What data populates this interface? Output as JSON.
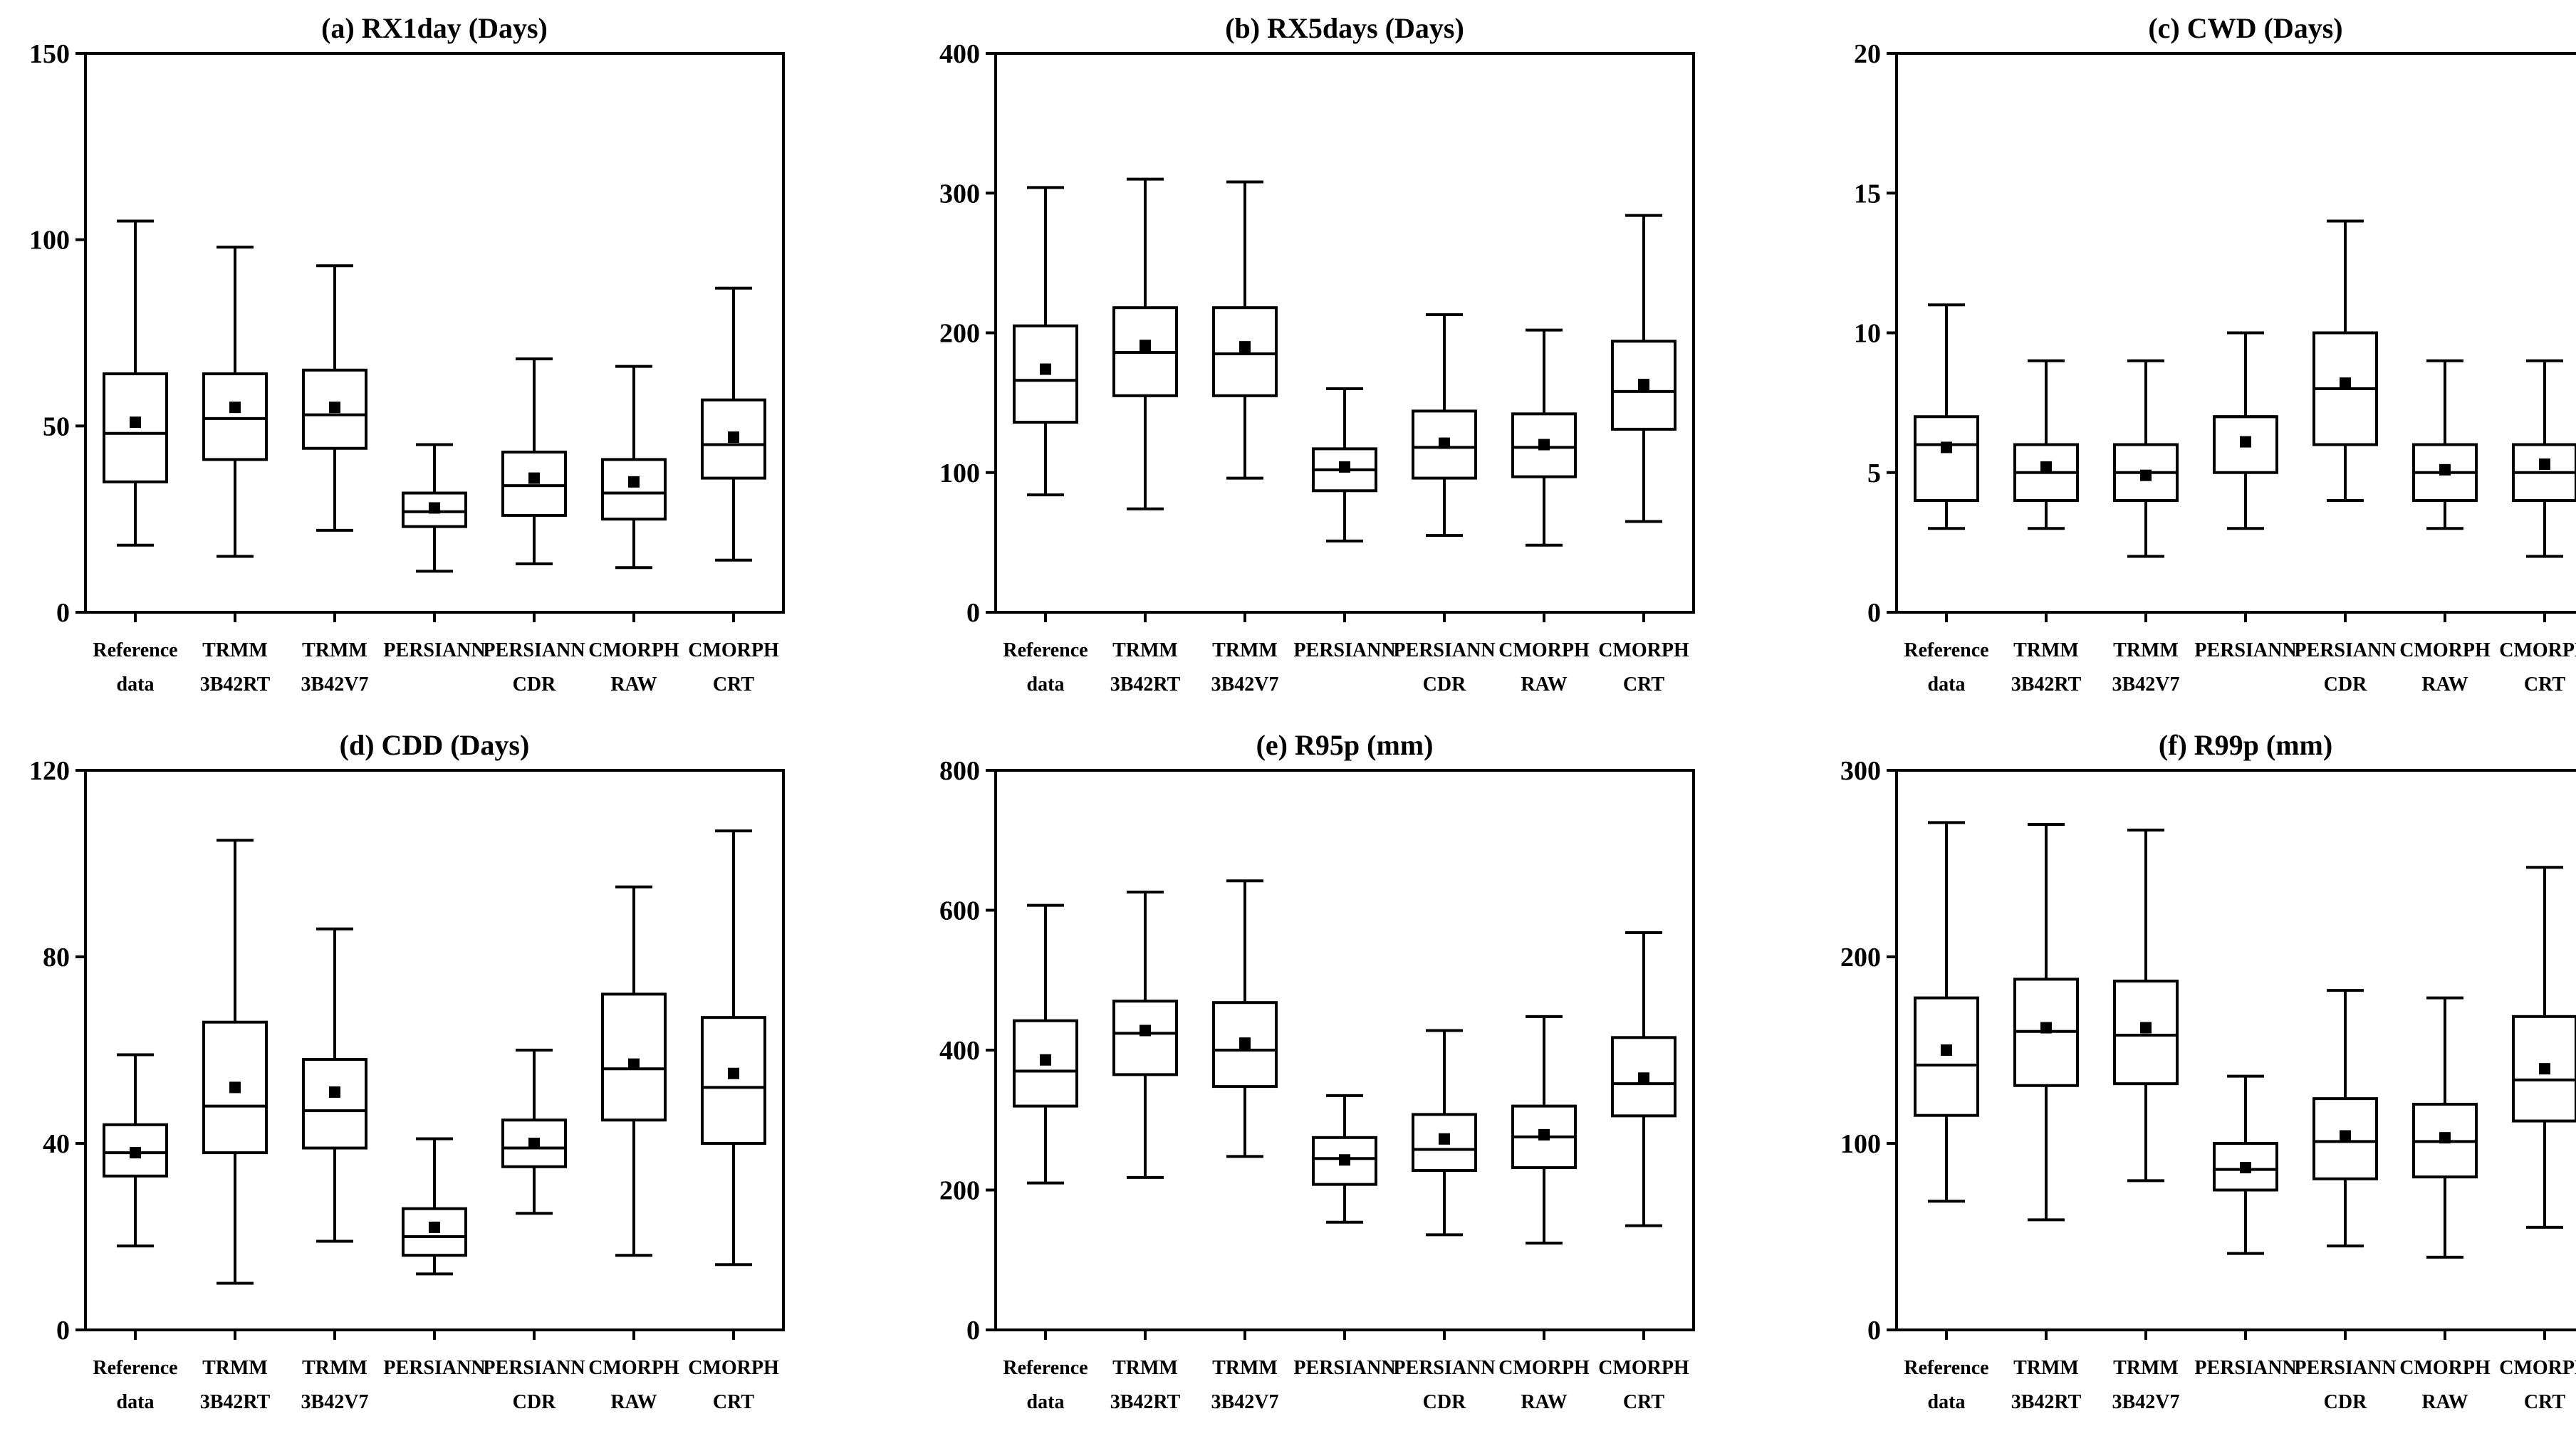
{
  "chart_data": [
    {
      "type": "boxplot",
      "title": "(a) RX1day (Days)",
      "ylim": [
        0,
        150
      ],
      "yticks": [
        0,
        50,
        100,
        150
      ],
      "categories": [
        [
          "Reference",
          "data"
        ],
        [
          "TRMM",
          "3B42RT"
        ],
        [
          "TRMM",
          "3B42V7"
        ],
        [
          "PERSIANN",
          ""
        ],
        [
          "PERSIANN",
          "CDR"
        ],
        [
          "CMORPH",
          "RAW"
        ],
        [
          "CMORPH",
          "CRT"
        ]
      ],
      "boxes": [
        {
          "min": 18,
          "q1": 35,
          "median": 48,
          "q3": 64,
          "max": 105,
          "mean": 51
        },
        {
          "min": 15,
          "q1": 41,
          "median": 52,
          "q3": 64,
          "max": 98,
          "mean": 55
        },
        {
          "min": 22,
          "q1": 44,
          "median": 53,
          "q3": 65,
          "max": 93,
          "mean": 55
        },
        {
          "min": 11,
          "q1": 23,
          "median": 27,
          "q3": 32,
          "max": 45,
          "mean": 28
        },
        {
          "min": 13,
          "q1": 26,
          "median": 34,
          "q3": 43,
          "max": 68,
          "mean": 36
        },
        {
          "min": 12,
          "q1": 25,
          "median": 32,
          "q3": 41,
          "max": 66,
          "mean": 35
        },
        {
          "min": 14,
          "q1": 36,
          "median": 45,
          "q3": 57,
          "max": 87,
          "mean": 47
        }
      ]
    },
    {
      "type": "boxplot",
      "title": "(b) RX5days (Days)",
      "ylim": [
        0,
        400
      ],
      "yticks": [
        0,
        100,
        200,
        300,
        400
      ],
      "categories": [
        [
          "Reference",
          "data"
        ],
        [
          "TRMM",
          "3B42RT"
        ],
        [
          "TRMM",
          "3B42V7"
        ],
        [
          "PERSIANN",
          ""
        ],
        [
          "PERSIANN",
          "CDR"
        ],
        [
          "CMORPH",
          "RAW"
        ],
        [
          "CMORPH",
          "CRT"
        ]
      ],
      "boxes": [
        {
          "min": 84,
          "q1": 136,
          "median": 166,
          "q3": 205,
          "max": 304,
          "mean": 174
        },
        {
          "min": 74,
          "q1": 155,
          "median": 186,
          "q3": 218,
          "max": 310,
          "mean": 191
        },
        {
          "min": 96,
          "q1": 155,
          "median": 185,
          "q3": 218,
          "max": 308,
          "mean": 190
        },
        {
          "min": 51,
          "q1": 87,
          "median": 102,
          "q3": 117,
          "max": 160,
          "mean": 104
        },
        {
          "min": 55,
          "q1": 96,
          "median": 118,
          "q3": 144,
          "max": 213,
          "mean": 121
        },
        {
          "min": 48,
          "q1": 97,
          "median": 118,
          "q3": 142,
          "max": 202,
          "mean": 120
        },
        {
          "min": 65,
          "q1": 131,
          "median": 158,
          "q3": 194,
          "max": 284,
          "mean": 163
        }
      ]
    },
    {
      "type": "boxplot",
      "title": "(c) CWD (Days)",
      "ylim": [
        0,
        20
      ],
      "yticks": [
        0,
        5,
        10,
        15,
        20
      ],
      "categories": [
        [
          "Reference",
          "data"
        ],
        [
          "TRMM",
          "3B42RT"
        ],
        [
          "TRMM",
          "3B42V7"
        ],
        [
          "PERSIANN",
          ""
        ],
        [
          "PERSIANN",
          "CDR"
        ],
        [
          "CMORPH",
          "RAW"
        ],
        [
          "CMORPH",
          "CRT"
        ]
      ],
      "boxes": [
        {
          "min": 3,
          "q1": 4,
          "median": 6,
          "q3": 7,
          "max": 11,
          "mean": 5.9
        },
        {
          "min": 3,
          "q1": 4,
          "median": 5,
          "q3": 6,
          "max": 9,
          "mean": 5.2
        },
        {
          "min": 2,
          "q1": 4,
          "median": 5,
          "q3": 6,
          "max": 9,
          "mean": 4.9
        },
        {
          "min": 3,
          "q1": 5,
          "median": 7,
          "q3": 7,
          "max": 10,
          "mean": 6.1
        },
        {
          "min": 4,
          "q1": 6,
          "median": 8,
          "q3": 10,
          "max": 14,
          "mean": 8.2
        },
        {
          "min": 3,
          "q1": 4,
          "median": 5,
          "q3": 6,
          "max": 9,
          "mean": 5.1
        },
        {
          "min": 2,
          "q1": 4,
          "median": 5,
          "q3": 6,
          "max": 9,
          "mean": 5.3
        }
      ]
    },
    {
      "type": "boxplot",
      "title": "(d) CDD (Days)",
      "ylim": [
        0,
        120
      ],
      "yticks": [
        0,
        40,
        80,
        120
      ],
      "categories": [
        [
          "Reference",
          "data"
        ],
        [
          "TRMM",
          "3B42RT"
        ],
        [
          "TRMM",
          "3B42V7"
        ],
        [
          "PERSIANN",
          ""
        ],
        [
          "PERSIANN",
          "CDR"
        ],
        [
          "CMORPH",
          "RAW"
        ],
        [
          "CMORPH",
          "CRT"
        ]
      ],
      "boxes": [
        {
          "min": 18,
          "q1": 33,
          "median": 38,
          "q3": 44,
          "max": 59,
          "mean": 38
        },
        {
          "min": 10,
          "q1": 38,
          "median": 48,
          "q3": 66,
          "max": 105,
          "mean": 52
        },
        {
          "min": 19,
          "q1": 39,
          "median": 47,
          "q3": 58,
          "max": 86,
          "mean": 51
        },
        {
          "min": 12,
          "q1": 16,
          "median": 20,
          "q3": 26,
          "max": 41,
          "mean": 22
        },
        {
          "min": 25,
          "q1": 35,
          "median": 39,
          "q3": 45,
          "max": 60,
          "mean": 40
        },
        {
          "min": 16,
          "q1": 45,
          "median": 56,
          "q3": 72,
          "max": 95,
          "mean": 57
        },
        {
          "min": 14,
          "q1": 40,
          "median": 52,
          "q3": 67,
          "max": 107,
          "mean": 55
        }
      ]
    },
    {
      "type": "boxplot",
      "title": "(e) R95p (mm)",
      "ylim": [
        0,
        800
      ],
      "yticks": [
        0,
        200,
        400,
        600,
        800
      ],
      "categories": [
        [
          "Reference",
          "data"
        ],
        [
          "TRMM",
          "3B42RT"
        ],
        [
          "TRMM",
          "3B42V7"
        ],
        [
          "PERSIANN",
          ""
        ],
        [
          "PERSIANN",
          "CDR"
        ],
        [
          "CMORPH",
          "RAW"
        ],
        [
          "CMORPH",
          "CRT"
        ]
      ],
      "boxes": [
        {
          "min": 210,
          "q1": 320,
          "median": 370,
          "q3": 442,
          "max": 607,
          "mean": 386
        },
        {
          "min": 218,
          "q1": 365,
          "median": 424,
          "q3": 470,
          "max": 626,
          "mean": 428
        },
        {
          "min": 248,
          "q1": 348,
          "median": 400,
          "q3": 468,
          "max": 642,
          "mean": 410
        },
        {
          "min": 154,
          "q1": 208,
          "median": 245,
          "q3": 275,
          "max": 335,
          "mean": 243
        },
        {
          "min": 136,
          "q1": 228,
          "median": 258,
          "q3": 308,
          "max": 428,
          "mean": 273
        },
        {
          "min": 124,
          "q1": 232,
          "median": 276,
          "q3": 320,
          "max": 448,
          "mean": 279
        },
        {
          "min": 149,
          "q1": 306,
          "median": 352,
          "q3": 418,
          "max": 568,
          "mean": 360
        }
      ]
    },
    {
      "type": "boxplot",
      "title": "(f) R99p (mm)",
      "ylim": [
        0,
        300
      ],
      "yticks": [
        0,
        100,
        200,
        300
      ],
      "categories": [
        [
          "Reference",
          "data"
        ],
        [
          "TRMM",
          "3B42RT"
        ],
        [
          "TRMM",
          "3B42V7"
        ],
        [
          "PERSIANN",
          ""
        ],
        [
          "PERSIANN",
          "CDR"
        ],
        [
          "CMORPH",
          "RAW"
        ],
        [
          "CMORPH",
          "CRT"
        ]
      ],
      "boxes": [
        {
          "min": 69,
          "q1": 115,
          "median": 142,
          "q3": 178,
          "max": 272,
          "mean": 150
        },
        {
          "min": 59,
          "q1": 131,
          "median": 160,
          "q3": 188,
          "max": 271,
          "mean": 162
        },
        {
          "min": 80,
          "q1": 132,
          "median": 158,
          "q3": 187,
          "max": 268,
          "mean": 162
        },
        {
          "min": 41,
          "q1": 75,
          "median": 86,
          "q3": 100,
          "max": 136,
          "mean": 87
        },
        {
          "min": 45,
          "q1": 81,
          "median": 101,
          "q3": 124,
          "max": 182,
          "mean": 104
        },
        {
          "min": 39,
          "q1": 82,
          "median": 101,
          "q3": 121,
          "max": 178,
          "mean": 103
        },
        {
          "min": 55,
          "q1": 112,
          "median": 134,
          "q3": 168,
          "max": 248,
          "mean": 140
        }
      ]
    }
  ]
}
